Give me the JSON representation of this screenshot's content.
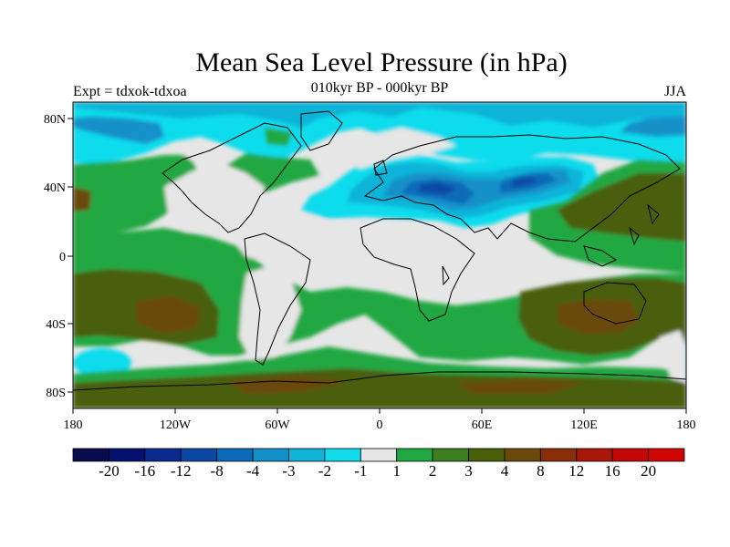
{
  "title": "Mean Sea Level Pressure (in hPa)",
  "subtitle": "010kyr BP - 000kyr BP",
  "left_label": "Expt = tdxok-tdxoa",
  "right_label": "JJA",
  "lat_ticks": [
    "80N",
    "40N",
    "0",
    "40S",
    "80S"
  ],
  "lon_ticks": [
    "180",
    "120W",
    "60W",
    "0",
    "60E",
    "120E",
    "180"
  ],
  "colorbar": {
    "labels": [
      "-20",
      "-16",
      "-12",
      "-8",
      "-4",
      "-3",
      "-2",
      "-1",
      "1",
      "2",
      "3",
      "4",
      "8",
      "12",
      "16",
      "20"
    ],
    "colors": [
      "#0a0a4e",
      "#06106e",
      "#0a2a8e",
      "#0a48a4",
      "#0d6ab8",
      "#1290c8",
      "#10b4d8",
      "#10dcec",
      "#e6e6e6",
      "#20a842",
      "#3c7e20",
      "#4a5f0a",
      "#6a4a0a",
      "#8a2e0a",
      "#a8180a",
      "#c40808",
      "#d20404"
    ]
  },
  "map_colors": {
    "background": "#e6e6e6",
    "coast": "#000000"
  }
}
